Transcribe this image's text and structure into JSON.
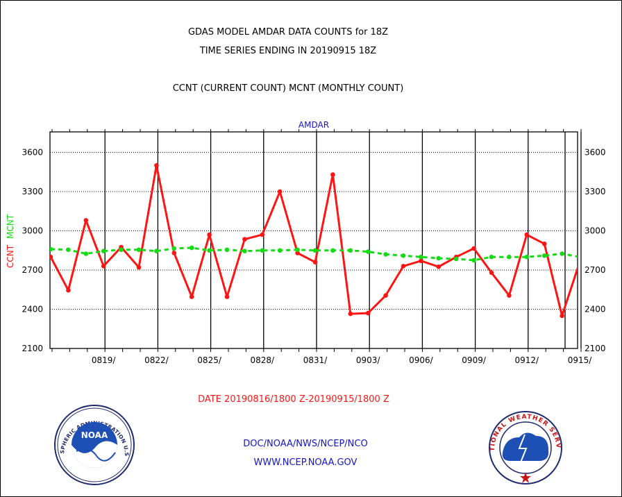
{
  "header": {
    "title_line1": "GDAS MODEL AMDAR DATA COUNTS for 18Z",
    "title_line2": "TIME SERIES ENDING IN 20190915 18Z",
    "subtitle": "CCNT (CURRENT COUNT) MCNT (MONTHLY COUNT)"
  },
  "chart_data": {
    "type": "line",
    "title": "AMDAR",
    "ylabel_ccnt": "CCNT",
    "ylabel_mcnt": "MCNT",
    "xlabel": "DATE 20190816/1800 Z-20190915/1800 Z",
    "ylim": [
      2100,
      3800
    ],
    "yticks": [
      2100,
      2400,
      2700,
      3000,
      3300,
      3600
    ],
    "xlim": [
      0,
      30
    ],
    "xticks": [
      {
        "day": 3,
        "label": "0819/"
      },
      {
        "day": 6,
        "label": "0822/"
      },
      {
        "day": 9,
        "label": "0825/"
      },
      {
        "day": 12,
        "label": "0828/"
      },
      {
        "day": 15,
        "label": "0831/"
      },
      {
        "day": 18,
        "label": "0903/"
      },
      {
        "day": 21,
        "label": "0906/"
      },
      {
        "day": 24,
        "label": "0909/"
      },
      {
        "day": 27,
        "label": "0912/"
      },
      {
        "day": 30,
        "label": "0915/"
      }
    ],
    "grid": true,
    "series": [
      {
        "name": "CCNT",
        "color": "#ff1414",
        "style": "solid",
        "values": [
          2800,
          2545,
          3080,
          2730,
          2875,
          2720,
          3500,
          2830,
          2495,
          2970,
          2495,
          2935,
          2970,
          3300,
          2830,
          2760,
          3430,
          2365,
          2370,
          2505,
          2730,
          2770,
          2725,
          2800,
          2865,
          2680,
          2505,
          2970,
          2900,
          2350,
          2760
        ]
      },
      {
        "name": "MCNT",
        "color": "#14dc14",
        "style": "dashed",
        "values": [
          2860,
          2855,
          2825,
          2845,
          2855,
          2855,
          2845,
          2865,
          2870,
          2850,
          2855,
          2845,
          2850,
          2850,
          2855,
          2850,
          2850,
          2850,
          2840,
          2820,
          2810,
          2800,
          2790,
          2785,
          2775,
          2800,
          2800,
          2800,
          2810,
          2825,
          2800
        ]
      }
    ]
  },
  "footer": {
    "org_line": "DOC/NOAA/NWS/NCEP/NCO",
    "url_line": "WWW.NCEP.NOAA.GOV",
    "noaa_seal_text": "NATIONAL OCEANIC AND ATMOSPHERIC ADMINISTRATION U.S. DEPARTMENT OF COMMERCE",
    "noaa_seal_center": "NOAA",
    "nws_seal_text": "NATIONAL WEATHER SERVICE"
  }
}
